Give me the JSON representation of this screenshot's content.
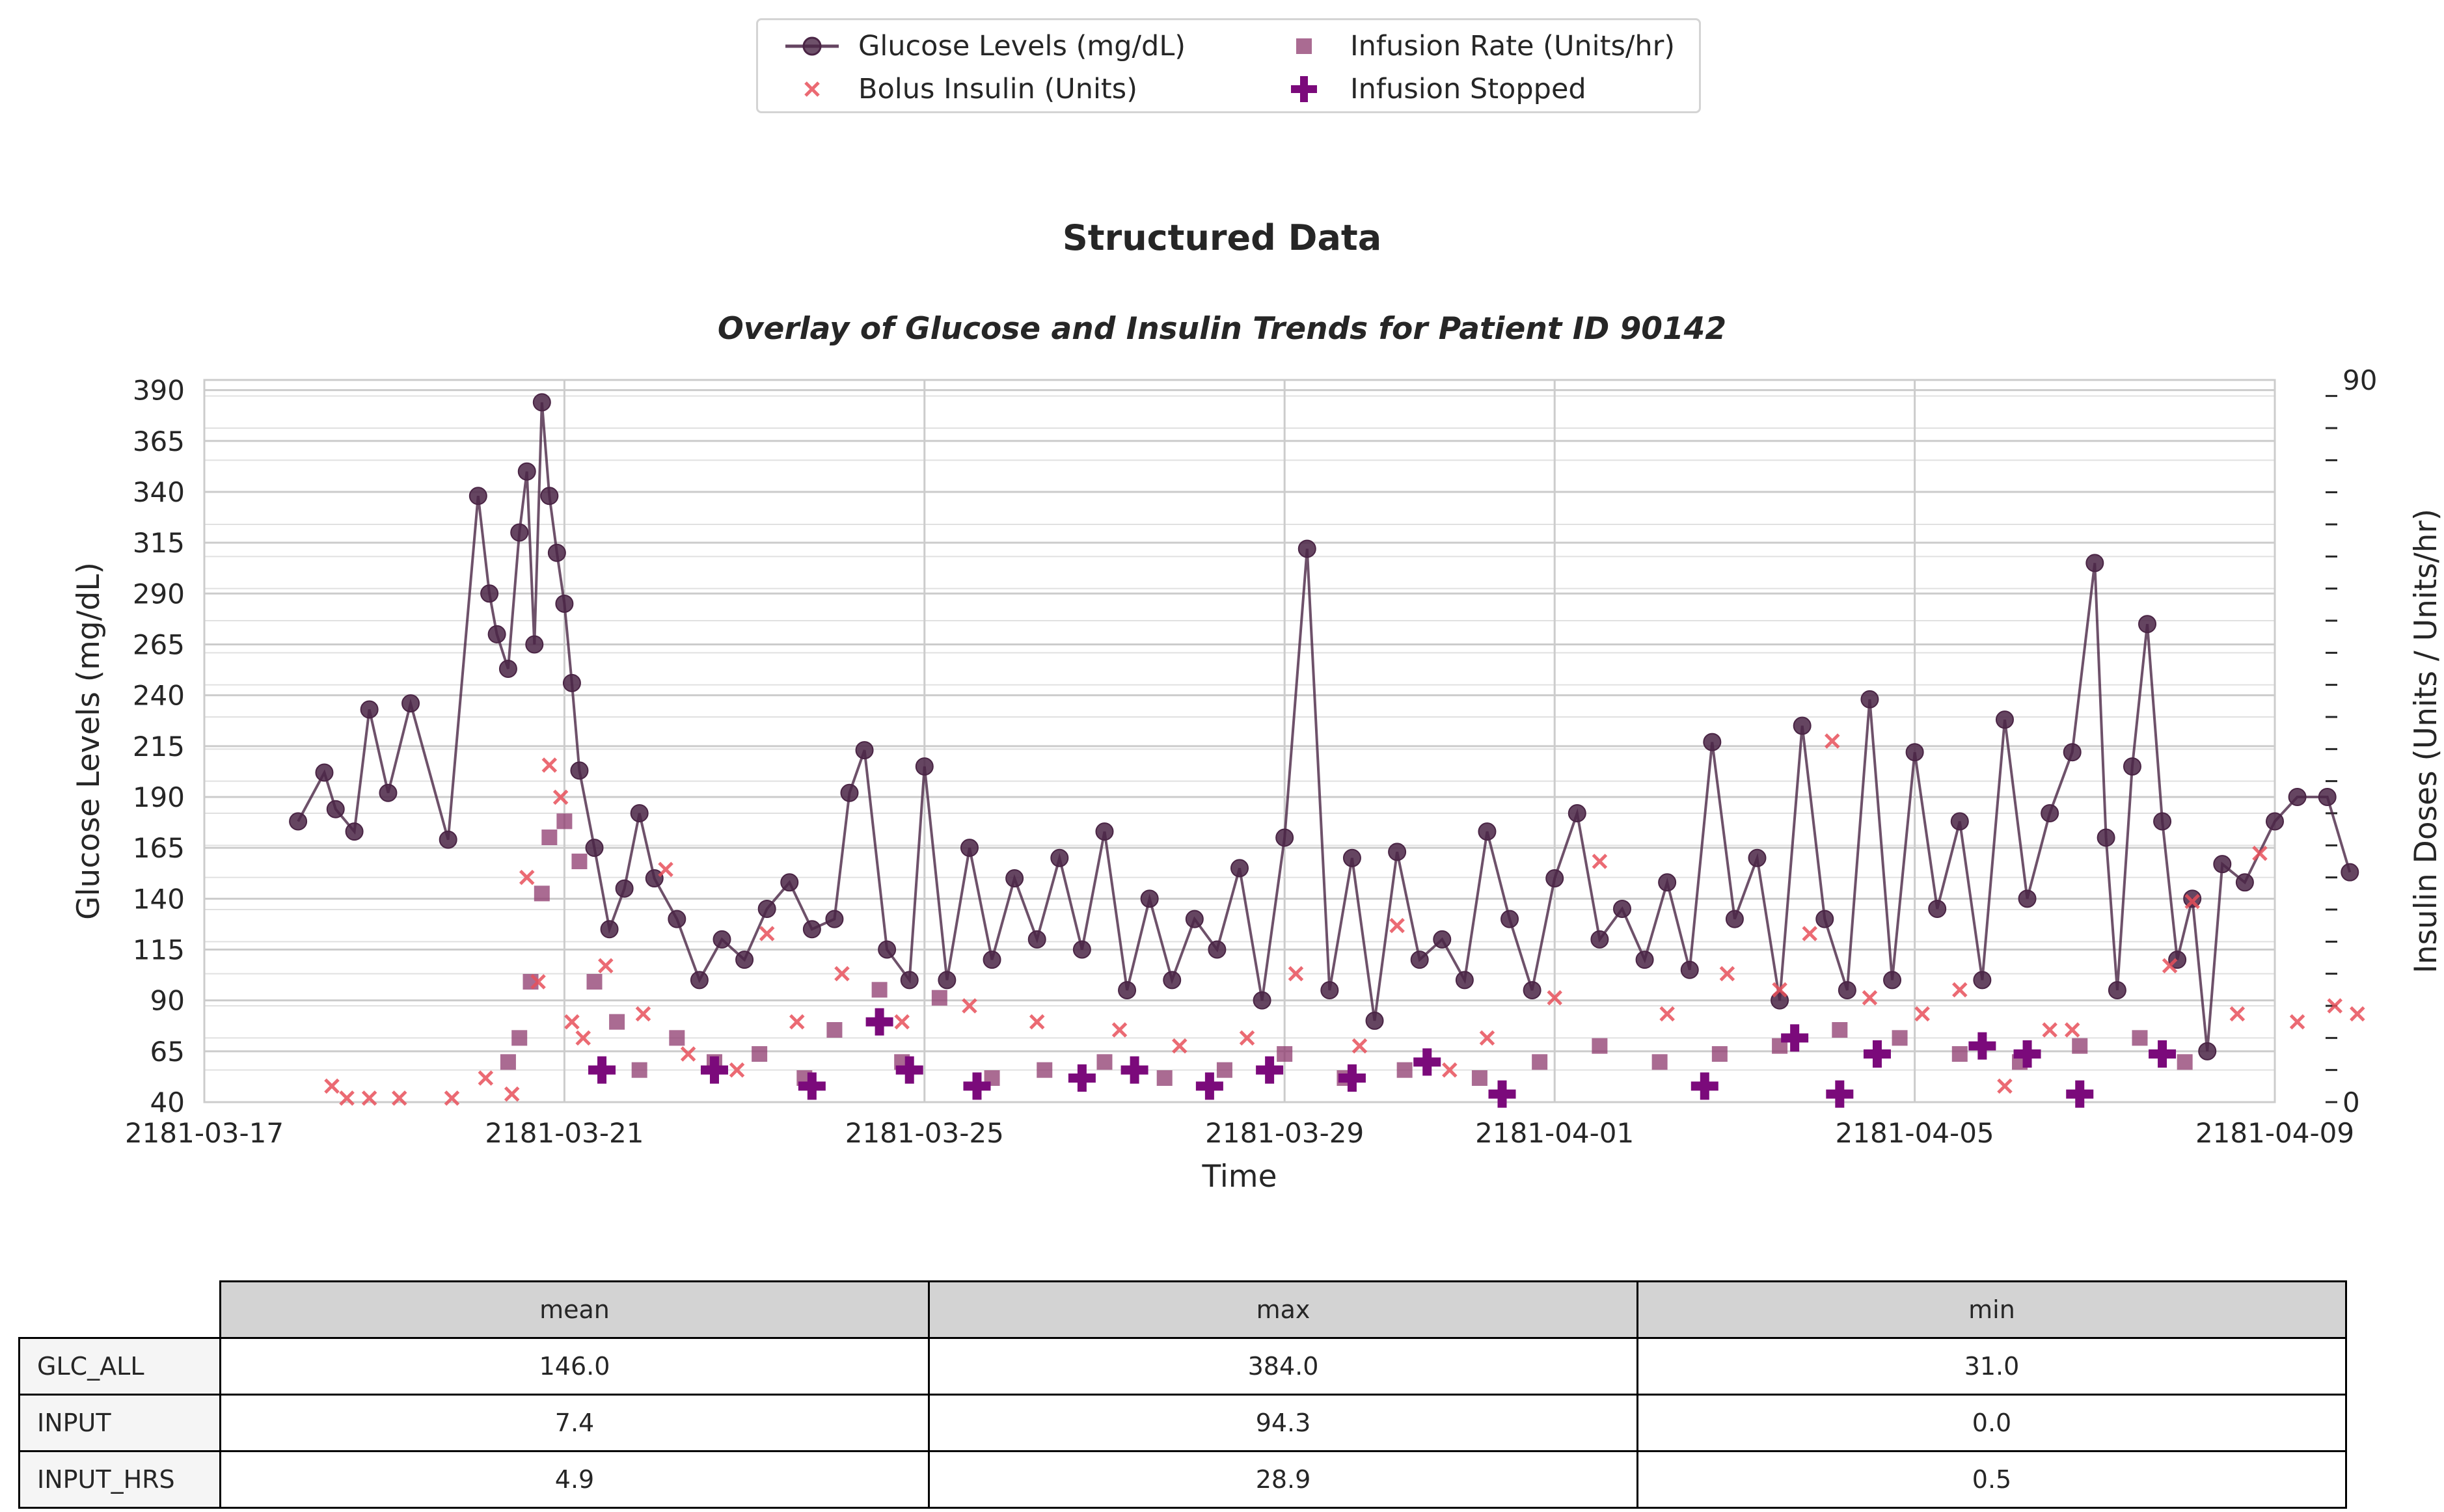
{
  "figure_title": "Structured Data",
  "colors": {
    "glucose": "#4a2545",
    "bolus": "#e8505b",
    "infusion_rate": "#8e3a6e",
    "infusion_stopped": "#7b0a7b",
    "grid": "#cccccc"
  },
  "legend": {
    "glucose": "Glucose Levels (mg/dL)",
    "bolus": "Bolus Insulin (Units)",
    "infusion_rate": "Infusion Rate (Units/hr)",
    "infusion_stopped": "Infusion Stopped"
  },
  "chart_data": {
    "type": "line",
    "title": "Overlay of Glucose and Insulin Trends for Patient ID 90142",
    "xlabel": "Time",
    "ylabel": "Glucose Levels (mg/dL)",
    "y2label": "Insulin Doses (Units / Units/hr)",
    "x_ticks": [
      "2181-03-17",
      "2181-03-21",
      "2181-03-25",
      "2181-03-29",
      "2181-04-01",
      "2181-04-05",
      "2181-04-09"
    ],
    "xlim": [
      "2181-03-17",
      "2181-04-09"
    ],
    "y_ticks": [
      40,
      65,
      90,
      115,
      140,
      165,
      190,
      215,
      240,
      265,
      290,
      315,
      340,
      365,
      390
    ],
    "ylim": [
      40,
      395
    ],
    "y2_ticks": [
      0,
      90
    ],
    "y2lim": [
      0,
      90
    ],
    "grid": true,
    "legend_position": "top-center",
    "series": [
      {
        "name": "Glucose Levels (mg/dL)",
        "kind": "line-marker",
        "points": [
          [
            "2181-03-18 01:00",
            178
          ],
          [
            "2181-03-18 08:00",
            202
          ],
          [
            "2181-03-18 11:00",
            184
          ],
          [
            "2181-03-18 16:00",
            173
          ],
          [
            "2181-03-18 20:00",
            233
          ],
          [
            "2181-03-19 01:00",
            192
          ],
          [
            "2181-03-19 07:00",
            236
          ],
          [
            "2181-03-19 17:00",
            169
          ],
          [
            "2181-03-20 01:00",
            338
          ],
          [
            "2181-03-20 04:00",
            290
          ],
          [
            "2181-03-20 06:00",
            270
          ],
          [
            "2181-03-20 09:00",
            253
          ],
          [
            "2181-03-20 12:00",
            320
          ],
          [
            "2181-03-20 14:00",
            350
          ],
          [
            "2181-03-20 16:00",
            265
          ],
          [
            "2181-03-20 18:00",
            384
          ],
          [
            "2181-03-20 20:00",
            338
          ],
          [
            "2181-03-20 22:00",
            310
          ],
          [
            "2181-03-21 00:00",
            285
          ],
          [
            "2181-03-21 02:00",
            246
          ],
          [
            "2181-03-21 04:00",
            203
          ],
          [
            "2181-03-21 08:00",
            165
          ],
          [
            "2181-03-21 12:00",
            125
          ],
          [
            "2181-03-21 16:00",
            145
          ],
          [
            "2181-03-21 20:00",
            182
          ],
          [
            "2181-03-22 00:00",
            150
          ],
          [
            "2181-03-22 06:00",
            130
          ],
          [
            "2181-03-22 12:00",
            100
          ],
          [
            "2181-03-22 18:00",
            120
          ],
          [
            "2181-03-23 00:00",
            110
          ],
          [
            "2181-03-23 06:00",
            135
          ],
          [
            "2181-03-23 12:00",
            148
          ],
          [
            "2181-03-23 18:00",
            125
          ],
          [
            "2181-03-24 00:00",
            130
          ],
          [
            "2181-03-24 04:00",
            192
          ],
          [
            "2181-03-24 08:00",
            213
          ],
          [
            "2181-03-24 14:00",
            115
          ],
          [
            "2181-03-24 20:00",
            100
          ],
          [
            "2181-03-25 00:00",
            205
          ],
          [
            "2181-03-25 06:00",
            100
          ],
          [
            "2181-03-25 12:00",
            165
          ],
          [
            "2181-03-25 18:00",
            110
          ],
          [
            "2181-03-26 00:00",
            150
          ],
          [
            "2181-03-26 06:00",
            120
          ],
          [
            "2181-03-26 12:00",
            160
          ],
          [
            "2181-03-26 18:00",
            115
          ],
          [
            "2181-03-27 00:00",
            173
          ],
          [
            "2181-03-27 06:00",
            95
          ],
          [
            "2181-03-27 12:00",
            140
          ],
          [
            "2181-03-27 18:00",
            100
          ],
          [
            "2181-03-28 00:00",
            130
          ],
          [
            "2181-03-28 06:00",
            115
          ],
          [
            "2181-03-28 12:00",
            155
          ],
          [
            "2181-03-28 18:00",
            90
          ],
          [
            "2181-03-29 00:00",
            170
          ],
          [
            "2181-03-29 06:00",
            312
          ],
          [
            "2181-03-29 12:00",
            95
          ],
          [
            "2181-03-29 18:00",
            160
          ],
          [
            "2181-03-30 00:00",
            80
          ],
          [
            "2181-03-30 06:00",
            163
          ],
          [
            "2181-03-30 12:00",
            110
          ],
          [
            "2181-03-30 18:00",
            120
          ],
          [
            "2181-03-31 00:00",
            100
          ],
          [
            "2181-03-31 06:00",
            173
          ],
          [
            "2181-03-31 12:00",
            130
          ],
          [
            "2181-03-31 18:00",
            95
          ],
          [
            "2181-04-01 00:00",
            150
          ],
          [
            "2181-04-01 06:00",
            182
          ],
          [
            "2181-04-01 12:00",
            120
          ],
          [
            "2181-04-01 18:00",
            135
          ],
          [
            "2181-04-02 00:00",
            110
          ],
          [
            "2181-04-02 06:00",
            148
          ],
          [
            "2181-04-02 12:00",
            105
          ],
          [
            "2181-04-02 18:00",
            217
          ],
          [
            "2181-04-03 00:00",
            130
          ],
          [
            "2181-04-03 06:00",
            160
          ],
          [
            "2181-04-03 12:00",
            90
          ],
          [
            "2181-04-03 18:00",
            225
          ],
          [
            "2181-04-04 00:00",
            130
          ],
          [
            "2181-04-04 06:00",
            95
          ],
          [
            "2181-04-04 12:00",
            238
          ],
          [
            "2181-04-04 18:00",
            100
          ],
          [
            "2181-04-05 00:00",
            212
          ],
          [
            "2181-04-05 06:00",
            135
          ],
          [
            "2181-04-05 12:00",
            178
          ],
          [
            "2181-04-05 18:00",
            100
          ],
          [
            "2181-04-06 00:00",
            228
          ],
          [
            "2181-04-06 06:00",
            140
          ],
          [
            "2181-04-06 12:00",
            182
          ],
          [
            "2181-04-06 18:00",
            212
          ],
          [
            "2181-04-07 00:00",
            305
          ],
          [
            "2181-04-07 03:00",
            170
          ],
          [
            "2181-04-07 06:00",
            95
          ],
          [
            "2181-04-07 10:00",
            205
          ],
          [
            "2181-04-07 14:00",
            275
          ],
          [
            "2181-04-07 18:00",
            178
          ],
          [
            "2181-04-07 22:00",
            110
          ],
          [
            "2181-04-08 02:00",
            140
          ],
          [
            "2181-04-08 06:00",
            65
          ],
          [
            "2181-04-08 10:00",
            157
          ],
          [
            "2181-04-08 16:00",
            148
          ],
          [
            "2181-04-09 00:00",
            178
          ],
          [
            "2181-04-09 06:00",
            190
          ],
          [
            "2181-04-09 14:00",
            190
          ],
          [
            "2181-04-09 20:00",
            153
          ]
        ]
      },
      {
        "name": "Bolus Insulin (Units)",
        "kind": "scatter-x",
        "points": [
          [
            "2181-03-18 10:00",
            2
          ],
          [
            "2181-03-18 14:00",
            0.5
          ],
          [
            "2181-03-18 20:00",
            0.5
          ],
          [
            "2181-03-19 04:00",
            0.5
          ],
          [
            "2181-03-19 18:00",
            0.5
          ],
          [
            "2181-03-20 03:00",
            3
          ],
          [
            "2181-03-20 10:00",
            1
          ],
          [
            "2181-03-20 14:00",
            28
          ],
          [
            "2181-03-20 17:00",
            15
          ],
          [
            "2181-03-20 20:00",
            42
          ],
          [
            "2181-03-20 23:00",
            38
          ],
          [
            "2181-03-21 02:00",
            10
          ],
          [
            "2181-03-21 05:00",
            8
          ],
          [
            "2181-03-21 11:00",
            17
          ],
          [
            "2181-03-21 21:00",
            11
          ],
          [
            "2181-03-22 03:00",
            29
          ],
          [
            "2181-03-22 09:00",
            6
          ],
          [
            "2181-03-22 22:00",
            4
          ],
          [
            "2181-03-23 06:00",
            21
          ],
          [
            "2181-03-23 14:00",
            10
          ],
          [
            "2181-03-24 02:00",
            16
          ],
          [
            "2181-03-24 18:00",
            10
          ],
          [
            "2181-03-25 12:00",
            12
          ],
          [
            "2181-03-26 06:00",
            10
          ],
          [
            "2181-03-27 04:00",
            9
          ],
          [
            "2181-03-27 20:00",
            7
          ],
          [
            "2181-03-28 14:00",
            8
          ],
          [
            "2181-03-29 03:00",
            16
          ],
          [
            "2181-03-29 20:00",
            7
          ],
          [
            "2181-03-30 06:00",
            22
          ],
          [
            "2181-03-30 20:00",
            4
          ],
          [
            "2181-03-31 06:00",
            8
          ],
          [
            "2181-04-01 00:00",
            13
          ],
          [
            "2181-04-01 12:00",
            30
          ],
          [
            "2181-04-02 06:00",
            11
          ],
          [
            "2181-04-02 22:00",
            16
          ],
          [
            "2181-04-03 12:00",
            14
          ],
          [
            "2181-04-03 20:00",
            21
          ],
          [
            "2181-04-04 02:00",
            45
          ],
          [
            "2181-04-04 12:00",
            13
          ],
          [
            "2181-04-05 02:00",
            11
          ],
          [
            "2181-04-05 12:00",
            14
          ],
          [
            "2181-04-06 00:00",
            2
          ],
          [
            "2181-04-06 12:00",
            9
          ],
          [
            "2181-04-06 18:00",
            9
          ],
          [
            "2181-04-07 20:00",
            17
          ],
          [
            "2181-04-08 02:00",
            25
          ],
          [
            "2181-04-08 14:00",
            11
          ],
          [
            "2181-04-08 20:00",
            31
          ],
          [
            "2181-04-09 06:00",
            10
          ],
          [
            "2181-04-09 16:00",
            12
          ],
          [
            "2181-04-09 22:00",
            11
          ]
        ]
      },
      {
        "name": "Infusion Rate (Units/hr)",
        "kind": "scatter-square",
        "points": [
          [
            "2181-03-20 09:00",
            5
          ],
          [
            "2181-03-20 12:00",
            8
          ],
          [
            "2181-03-20 15:00",
            15
          ],
          [
            "2181-03-20 18:00",
            26
          ],
          [
            "2181-03-20 20:00",
            33
          ],
          [
            "2181-03-21 00:00",
            35
          ],
          [
            "2181-03-21 04:00",
            30
          ],
          [
            "2181-03-21 08:00",
            15
          ],
          [
            "2181-03-21 14:00",
            10
          ],
          [
            "2181-03-21 20:00",
            4
          ],
          [
            "2181-03-22 06:00",
            8
          ],
          [
            "2181-03-22 16:00",
            5
          ],
          [
            "2181-03-23 04:00",
            6
          ],
          [
            "2181-03-23 16:00",
            3
          ],
          [
            "2181-03-24 00:00",
            9
          ],
          [
            "2181-03-24 12:00",
            14
          ],
          [
            "2181-03-24 18:00",
            5
          ],
          [
            "2181-03-25 04:00",
            13
          ],
          [
            "2181-03-25 18:00",
            3
          ],
          [
            "2181-03-26 08:00",
            4
          ],
          [
            "2181-03-27 00:00",
            5
          ],
          [
            "2181-03-27 16:00",
            3
          ],
          [
            "2181-03-28 08:00",
            4
          ],
          [
            "2181-03-29 00:00",
            6
          ],
          [
            "2181-03-29 16:00",
            3
          ],
          [
            "2181-03-30 08:00",
            4
          ],
          [
            "2181-03-31 04:00",
            3
          ],
          [
            "2181-03-31 20:00",
            5
          ],
          [
            "2181-04-01 12:00",
            7
          ],
          [
            "2181-04-02 04:00",
            5
          ],
          [
            "2181-04-02 20:00",
            6
          ],
          [
            "2181-04-03 12:00",
            7
          ],
          [
            "2181-04-04 04:00",
            9
          ],
          [
            "2181-04-04 20:00",
            8
          ],
          [
            "2181-04-05 12:00",
            6
          ],
          [
            "2181-04-06 04:00",
            5
          ],
          [
            "2181-04-06 20:00",
            7
          ],
          [
            "2181-04-07 12:00",
            8
          ],
          [
            "2181-04-08 00:00",
            5
          ]
        ]
      },
      {
        "name": "Infusion Stopped",
        "kind": "scatter-plus",
        "points": [
          [
            "2181-03-21 10:00",
            4
          ],
          [
            "2181-03-22 16:00",
            4
          ],
          [
            "2181-03-23 18:00",
            2
          ],
          [
            "2181-03-24 12:00",
            10
          ],
          [
            "2181-03-24 20:00",
            4
          ],
          [
            "2181-03-25 14:00",
            2
          ],
          [
            "2181-03-26 18:00",
            3
          ],
          [
            "2181-03-27 08:00",
            4
          ],
          [
            "2181-03-28 04:00",
            2
          ],
          [
            "2181-03-28 20:00",
            4
          ],
          [
            "2181-03-29 18:00",
            3
          ],
          [
            "2181-03-30 14:00",
            5
          ],
          [
            "2181-03-31 10:00",
            1
          ],
          [
            "2181-04-02 16:00",
            2
          ],
          [
            "2181-04-03 16:00",
            8
          ],
          [
            "2181-04-04 04:00",
            1
          ],
          [
            "2181-04-04 14:00",
            6
          ],
          [
            "2181-04-05 18:00",
            7
          ],
          [
            "2181-04-06 06:00",
            6
          ],
          [
            "2181-04-06 20:00",
            1
          ],
          [
            "2181-04-07 18:00",
            6
          ]
        ]
      }
    ]
  },
  "table": {
    "columns": [
      "mean",
      "max",
      "min"
    ],
    "rows": [
      {
        "label": "GLC_ALL",
        "values": [
          "146.0",
          "384.0",
          "31.0"
        ]
      },
      {
        "label": "INPUT",
        "values": [
          "7.4",
          "94.3",
          "0.0"
        ]
      },
      {
        "label": "INPUT_HRS",
        "values": [
          "4.9",
          "28.9",
          "0.5"
        ]
      }
    ]
  }
}
